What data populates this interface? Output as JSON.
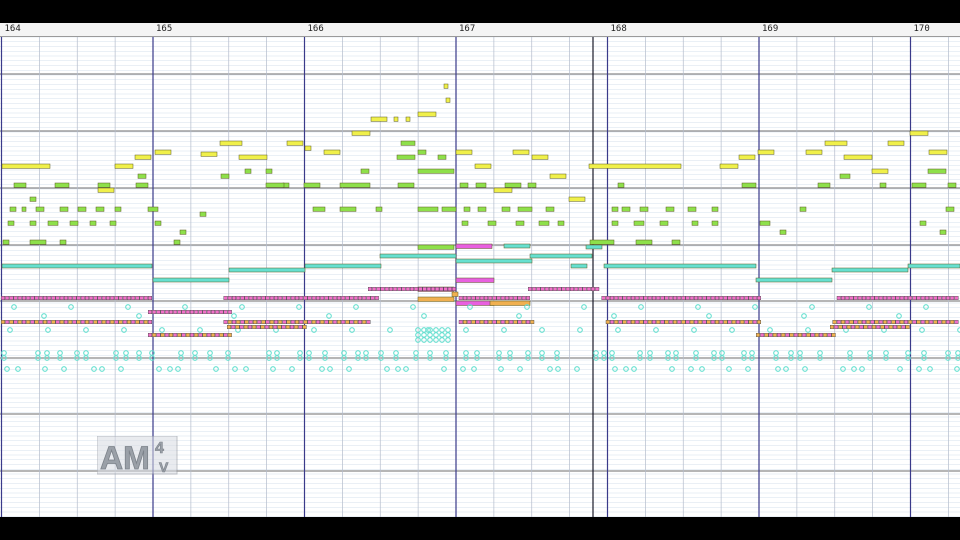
{
  "view": {
    "measures": [
      "164",
      "165",
      "166",
      "167",
      "168",
      "169",
      "170"
    ],
    "first_measure": 164
  },
  "watermark": {
    "logo_text": "AM",
    "logo_superscript": "4",
    "logo_subscript": "V"
  },
  "colors": {
    "background": "#ffffff",
    "lane_line": "#d6e0ec",
    "octave_line": "#6e6e6e",
    "bar_line": "#3a3a8a",
    "beat_line": "#b4bccc",
    "yellow_note": "#f0f04a",
    "green_note": "#8ee04a",
    "cyan_note": "#66e0d0",
    "magenta_note": "#e860e0",
    "orange_note": "#f0b050",
    "pink_note": "#f070c8"
  }
}
